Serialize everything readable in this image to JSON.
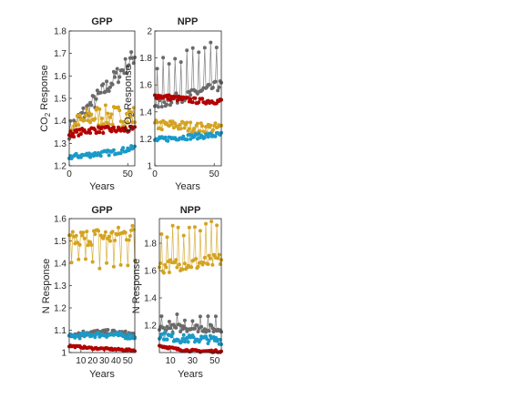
{
  "colors": {
    "gray": "#6a6a6a",
    "gold": "#d4a321",
    "red": "#b30000",
    "blue": "#1a9ac8"
  },
  "labels": {
    "co2_ylabel_base": "CO",
    "co2_ylabel_sub": "2",
    "co2_ylabel_rest": " Response",
    "n_ylabel": "N Response",
    "xlabel": "Years"
  },
  "chart_data": [
    {
      "type": "line",
      "title": "GPP",
      "xlabel": "Years",
      "ylabel": "CO2 Response",
      "xlim": [
        0,
        56
      ],
      "ylim": [
        1.2,
        1.8
      ],
      "xticks": [
        0,
        50
      ],
      "yticks": [
        1.2,
        1.3,
        1.4,
        1.5,
        1.6,
        1.7,
        1.8
      ],
      "ytick_labels": [
        "1.2",
        "1.3",
        "1.4",
        "1.5",
        "1.6",
        "1.7",
        "1.8"
      ],
      "series": [
        {
          "color": "gray",
          "trend": [
            1.36,
            1.47,
            1.58,
            1.69
          ],
          "noise": 0.04,
          "spike_every": 0
        },
        {
          "color": "gold",
          "trend": [
            1.36,
            1.42,
            1.42,
            1.42
          ],
          "noise": 0.05,
          "spike_every": 0
        },
        {
          "color": "red",
          "trend": [
            1.34,
            1.36,
            1.36,
            1.36
          ],
          "noise": 0.015,
          "spike_every": 0
        },
        {
          "color": "blue",
          "trend": [
            1.24,
            1.25,
            1.26,
            1.28
          ],
          "noise": 0.012,
          "spike_every": 0
        }
      ]
    },
    {
      "type": "line",
      "title": "NPP",
      "xlabel": "Years",
      "ylabel": "CO2 Response",
      "xlim": [
        0,
        56
      ],
      "ylim": [
        1.0,
        2.0
      ],
      "xticks": [
        0,
        50
      ],
      "yticks": [
        1.0,
        1.2,
        1.4,
        1.6,
        1.8,
        2.0
      ],
      "ytick_labels": [
        "1",
        "1.2",
        "1.4",
        "1.6",
        "1.8",
        "2"
      ],
      "series": [
        {
          "color": "gray",
          "trend": [
            1.45,
            1.5,
            1.55,
            1.6
          ],
          "noise": 0.04,
          "spike_every": 5,
          "spike_size": 0.3
        },
        {
          "color": "gold",
          "trend": [
            1.3,
            1.3,
            1.28,
            1.28
          ],
          "noise": 0.04,
          "spike_every": 0
        },
        {
          "color": "red",
          "trend": [
            1.52,
            1.5,
            1.48,
            1.48
          ],
          "noise": 0.02,
          "spike_every": 0
        },
        {
          "color": "blue",
          "trend": [
            1.19,
            1.21,
            1.22,
            1.23
          ],
          "noise": 0.02,
          "spike_every": 0
        }
      ]
    },
    {
      "type": "line",
      "title": "GPP",
      "xlabel": "Years",
      "ylabel": "N Response",
      "xlim": [
        0,
        56
      ],
      "ylim": [
        1.0,
        1.6
      ],
      "xticks": [
        10,
        20,
        30,
        40,
        50
      ],
      "yticks": [
        1.0,
        1.1,
        1.2,
        1.3,
        1.4,
        1.5,
        1.6
      ],
      "ytick_labels": [
        "1",
        "1.1",
        "1.2",
        "1.3",
        "1.4",
        "1.5",
        "1.6"
      ],
      "series": [
        {
          "color": "gold",
          "trend": [
            1.5,
            1.52,
            1.52,
            1.54
          ],
          "noise": 0.04,
          "spike_every": 6,
          "spike_size": -0.12
        },
        {
          "color": "gray",
          "trend": [
            1.08,
            1.09,
            1.09,
            1.08
          ],
          "noise": 0.012,
          "spike_every": 0
        },
        {
          "color": "blue",
          "trend": [
            1.07,
            1.08,
            1.08,
            1.07
          ],
          "noise": 0.012,
          "spike_every": 0
        },
        {
          "color": "red",
          "trend": [
            1.03,
            1.02,
            1.015,
            1.01
          ],
          "noise": 0.004,
          "spike_every": 0
        }
      ]
    },
    {
      "type": "line",
      "title": "NPP",
      "xlabel": "Years",
      "ylabel": "N Response",
      "xlim": [
        0,
        56
      ],
      "ylim": [
        1.0,
        1.98
      ],
      "xticks": [
        10,
        30,
        50
      ],
      "yticks": [
        1.2,
        1.4,
        1.6,
        1.8
      ],
      "ytick_labels": [
        "1.2",
        "1.4",
        "1.6",
        "1.8"
      ],
      "series": [
        {
          "color": "gold",
          "trend": [
            1.62,
            1.65,
            1.65,
            1.68
          ],
          "noise": 0.05,
          "spike_every": 5,
          "spike_size": 0.25
        },
        {
          "color": "gray",
          "trend": [
            1.17,
            1.18,
            1.18,
            1.17
          ],
          "noise": 0.03,
          "spike_every": 7,
          "spike_size": 0.08
        },
        {
          "color": "blue",
          "trend": [
            1.13,
            1.1,
            1.1,
            1.09
          ],
          "noise": 0.03,
          "spike_every": 0
        },
        {
          "color": "red",
          "trend": [
            1.05,
            1.02,
            1.01,
            1.01
          ],
          "noise": 0.008,
          "spike_every": 0
        }
      ]
    }
  ]
}
